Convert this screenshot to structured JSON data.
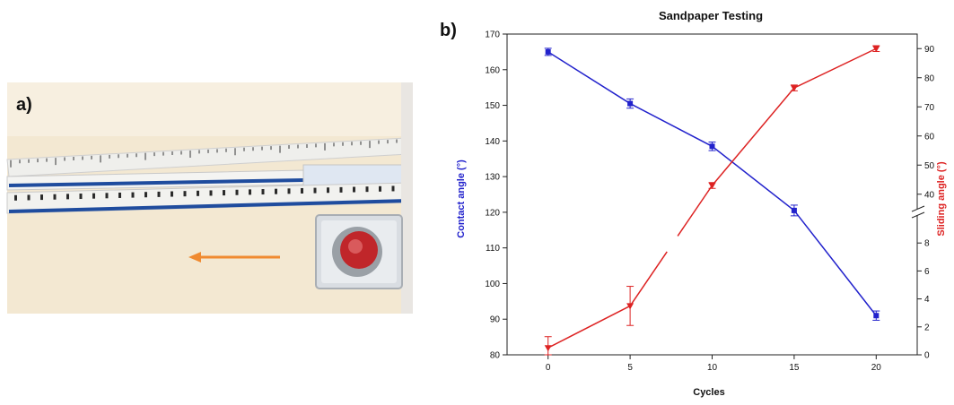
{
  "panels": {
    "a": {
      "letter": "a)"
    },
    "b": {
      "letter": "b)"
    }
  },
  "colors": {
    "contact": "#2222cc",
    "sliding": "#dd2222",
    "arrow": "#f08a30",
    "background_photo": "#f2e6cf"
  },
  "chart_data": {
    "type": "line",
    "title": "Sandpaper Testing",
    "xlabel": "Cycles",
    "ylabel_left": "Contact angle (°)",
    "ylabel_right": "Sliding angle (°)",
    "x": [
      0,
      5,
      10,
      15,
      20
    ],
    "xticks": [
      "0",
      "5",
      "10",
      "15",
      "20"
    ],
    "xlim": [
      -2.5,
      22.5
    ],
    "left_axis": {
      "ylim": [
        80,
        170
      ],
      "ticks": [
        "80",
        "90",
        "100",
        "110",
        "120",
        "130",
        "140",
        "150",
        "160",
        "170"
      ]
    },
    "right_axis": {
      "broken": true,
      "lower_range": [
        0,
        10
      ],
      "lower_ticks": [
        "0",
        "2",
        "4",
        "6",
        "8"
      ],
      "upper_range": [
        35,
        95
      ],
      "upper_ticks": [
        "40",
        "50",
        "60",
        "70",
        "80",
        "90"
      ]
    },
    "series": [
      {
        "axis": "left",
        "color": "#2222cc",
        "marker": "square",
        "values": [
          165,
          150.5,
          138.5,
          120.5,
          91
        ],
        "errors": [
          1,
          1.3,
          1.2,
          1.5,
          1.3
        ]
      },
      {
        "axis": "right",
        "color": "#dd2222",
        "marker": "triangle-down",
        "values": [
          0.5,
          3.5,
          43,
          76.5,
          90
        ],
        "errors": [
          0.8,
          1.4,
          1.0,
          1.0,
          1.0
        ]
      }
    ],
    "grid": false,
    "legend": "none"
  }
}
